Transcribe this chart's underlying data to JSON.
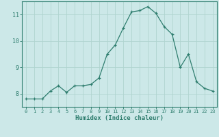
{
  "x": [
    0,
    1,
    2,
    3,
    4,
    5,
    6,
    7,
    8,
    9,
    10,
    11,
    12,
    13,
    14,
    15,
    16,
    17,
    18,
    19,
    20,
    21,
    22,
    23
  ],
  "y": [
    7.8,
    7.8,
    7.8,
    8.1,
    8.3,
    8.05,
    8.3,
    8.3,
    8.35,
    8.6,
    9.5,
    9.85,
    10.5,
    11.1,
    11.15,
    11.3,
    11.05,
    10.55,
    10.25,
    9.0,
    9.5,
    8.45,
    8.2,
    8.1
  ],
  "line_color": "#2e7d6e",
  "marker": "+",
  "xlabel": "Humidex (Indice chaleur)",
  "bg_color": "#cce8e8",
  "grid_color": "#b0d4d0",
  "axis_color": "#2e7d6e",
  "tick_label_color": "#2e7d6e",
  "xlabel_color": "#2e7d6e",
  "xlim": [
    -0.5,
    23.5
  ],
  "ylim": [
    7.5,
    11.5
  ],
  "yticks": [
    8,
    9,
    10,
    11
  ],
  "xticks": [
    0,
    1,
    2,
    3,
    4,
    5,
    6,
    7,
    8,
    9,
    10,
    11,
    12,
    13,
    14,
    15,
    16,
    17,
    18,
    19,
    20,
    21,
    22,
    23
  ]
}
